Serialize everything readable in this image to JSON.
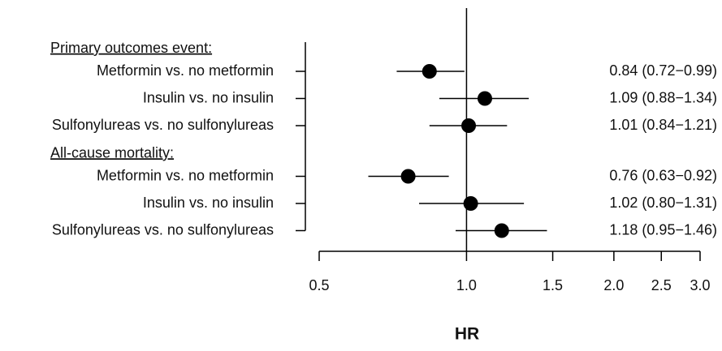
{
  "chart_data": {
    "type": "forest",
    "xlabel": "HR",
    "xscale": "log",
    "xlim": [
      0.5,
      3.0
    ],
    "xticks": [
      0.5,
      {
        "value": 1.0,
        "label": "1.0"
      },
      1.5,
      {
        "value": 2.0,
        "label": "2.0"
      },
      2.5,
      {
        "value": 3.0,
        "label": "3.0"
      }
    ],
    "refline": 1,
    "color": "#000000",
    "groups": [
      {
        "name": "Primary outcomes event:",
        "categories": [
          "Metformin vs. no metformin",
          "Insulin vs. no insulin",
          "Sulfonylureas  vs. no sulfonylureas"
        ],
        "values": [
          0.84,
          1.09,
          1.01
        ],
        "lower": [
          0.72,
          0.88,
          0.84
        ],
        "upper": [
          0.99,
          1.34,
          1.21
        ],
        "value_labels": [
          "0.84 (0.72−0.99)",
          "1.09 (0.88−1.34)",
          "1.01 (0.84−1.21)"
        ]
      },
      {
        "name": "All-cause mortality:",
        "categories": [
          "Metformin vs. no metformin",
          "Insulin vs. no insulin",
          "Sulfonylureas  vs. no sulfonylureas"
        ],
        "values": [
          0.76,
          1.02,
          1.18
        ],
        "lower": [
          0.63,
          0.8,
          0.95
        ],
        "upper": [
          0.92,
          1.31,
          1.46
        ],
        "value_labels": [
          "0.76 (0.63−0.92)",
          "1.02 (0.80−1.31)",
          "1.18 (0.95−1.46)"
        ]
      }
    ]
  }
}
